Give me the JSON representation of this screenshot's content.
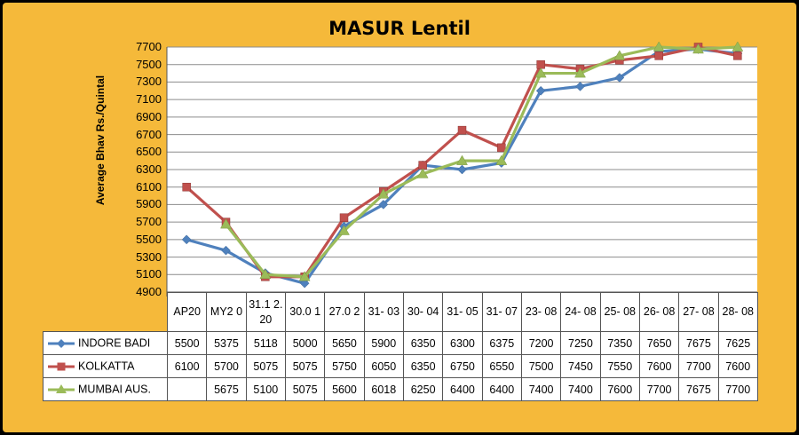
{
  "chart_data": {
    "type": "line",
    "title": "MASUR Lentil",
    "xlabel": "",
    "ylabel": "Average Bhav Rs./Quintal",
    "ylim": [
      4900,
      7700
    ],
    "yticks": [
      "4900",
      "5100",
      "5300",
      "5500",
      "5700",
      "5900",
      "6100",
      "6300",
      "6500",
      "6700",
      "6900",
      "7100",
      "7300",
      "7500",
      "7700"
    ],
    "categories": [
      "AP20",
      "MY2 0",
      "31.1 2.20",
      "30.0 1",
      "27.0 2",
      "31- 03",
      "30- 04",
      "31- 05",
      "31- 07",
      "23- 08",
      "24- 08",
      "25- 08",
      "26- 08",
      "27- 08",
      "28- 08"
    ],
    "grid": true,
    "legend": "data-table",
    "series": [
      {
        "name": "INDORE BADI",
        "color": "#4f81bd",
        "marker": "diamond",
        "values": [
          5500,
          5375,
          5118,
          5000,
          5650,
          5900,
          6350,
          6300,
          6375,
          7200,
          7250,
          7350,
          7650,
          7675,
          7625
        ],
        "labels": [
          "5500",
          "5375",
          "5118",
          "5000",
          "5650",
          "5900",
          "6350",
          "6300",
          "6375",
          "7200",
          "7250",
          "7350",
          "7650",
          "7675",
          "7625"
        ]
      },
      {
        "name": "KOLKATTA",
        "color": "#c0504d",
        "marker": "square",
        "values": [
          6100,
          5700,
          5075,
          5075,
          5750,
          6050,
          6350,
          6750,
          6550,
          7500,
          7450,
          7550,
          7600,
          7700,
          7600
        ],
        "labels": [
          "6100",
          "5700",
          "5075",
          "5075",
          "5750",
          "6050",
          "6350",
          "6750",
          "6550",
          "7500",
          "7450",
          "7550",
          "7600",
          "7700",
          "7600"
        ]
      },
      {
        "name": "MUMBAI AUS.",
        "color": "#9bbb59",
        "marker": "triangle",
        "values": [
          null,
          5675,
          5100,
          5075,
          5600,
          6018,
          6250,
          6400,
          6400,
          7400,
          7400,
          7600,
          7700,
          7675,
          7700
        ],
        "labels": [
          "",
          "5675",
          "5100",
          "5075",
          "5600",
          "6018",
          "6250",
          "6400",
          "6400",
          "7400",
          "7400",
          "7600",
          "7700",
          "7675",
          "7700"
        ]
      }
    ]
  }
}
